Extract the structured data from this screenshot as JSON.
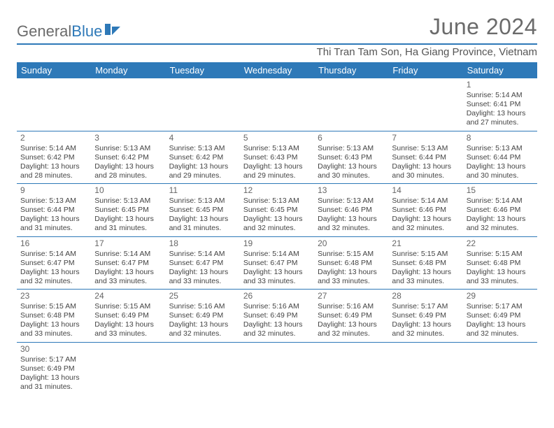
{
  "brand": {
    "part1": "General",
    "part2": "Blue"
  },
  "title": "June 2024",
  "location": "Thi Tran Tam Son, Ha Giang Province, Vietnam",
  "colors": {
    "accent": "#2e79b8",
    "text_muted": "#6b6b6b",
    "body": "#444"
  },
  "day_headers": [
    "Sunday",
    "Monday",
    "Tuesday",
    "Wednesday",
    "Thursday",
    "Friday",
    "Saturday"
  ],
  "weeks": [
    [
      null,
      null,
      null,
      null,
      null,
      null,
      {
        "n": "1",
        "sr": "Sunrise: 5:14 AM",
        "ss": "Sunset: 6:41 PM",
        "d1": "Daylight: 13 hours",
        "d2": "and 27 minutes."
      }
    ],
    [
      {
        "n": "2",
        "sr": "Sunrise: 5:14 AM",
        "ss": "Sunset: 6:42 PM",
        "d1": "Daylight: 13 hours",
        "d2": "and 28 minutes."
      },
      {
        "n": "3",
        "sr": "Sunrise: 5:13 AM",
        "ss": "Sunset: 6:42 PM",
        "d1": "Daylight: 13 hours",
        "d2": "and 28 minutes."
      },
      {
        "n": "4",
        "sr": "Sunrise: 5:13 AM",
        "ss": "Sunset: 6:42 PM",
        "d1": "Daylight: 13 hours",
        "d2": "and 29 minutes."
      },
      {
        "n": "5",
        "sr": "Sunrise: 5:13 AM",
        "ss": "Sunset: 6:43 PM",
        "d1": "Daylight: 13 hours",
        "d2": "and 29 minutes."
      },
      {
        "n": "6",
        "sr": "Sunrise: 5:13 AM",
        "ss": "Sunset: 6:43 PM",
        "d1": "Daylight: 13 hours",
        "d2": "and 30 minutes."
      },
      {
        "n": "7",
        "sr": "Sunrise: 5:13 AM",
        "ss": "Sunset: 6:44 PM",
        "d1": "Daylight: 13 hours",
        "d2": "and 30 minutes."
      },
      {
        "n": "8",
        "sr": "Sunrise: 5:13 AM",
        "ss": "Sunset: 6:44 PM",
        "d1": "Daylight: 13 hours",
        "d2": "and 30 minutes."
      }
    ],
    [
      {
        "n": "9",
        "sr": "Sunrise: 5:13 AM",
        "ss": "Sunset: 6:44 PM",
        "d1": "Daylight: 13 hours",
        "d2": "and 31 minutes."
      },
      {
        "n": "10",
        "sr": "Sunrise: 5:13 AM",
        "ss": "Sunset: 6:45 PM",
        "d1": "Daylight: 13 hours",
        "d2": "and 31 minutes."
      },
      {
        "n": "11",
        "sr": "Sunrise: 5:13 AM",
        "ss": "Sunset: 6:45 PM",
        "d1": "Daylight: 13 hours",
        "d2": "and 31 minutes."
      },
      {
        "n": "12",
        "sr": "Sunrise: 5:13 AM",
        "ss": "Sunset: 6:45 PM",
        "d1": "Daylight: 13 hours",
        "d2": "and 32 minutes."
      },
      {
        "n": "13",
        "sr": "Sunrise: 5:13 AM",
        "ss": "Sunset: 6:46 PM",
        "d1": "Daylight: 13 hours",
        "d2": "and 32 minutes."
      },
      {
        "n": "14",
        "sr": "Sunrise: 5:14 AM",
        "ss": "Sunset: 6:46 PM",
        "d1": "Daylight: 13 hours",
        "d2": "and 32 minutes."
      },
      {
        "n": "15",
        "sr": "Sunrise: 5:14 AM",
        "ss": "Sunset: 6:46 PM",
        "d1": "Daylight: 13 hours",
        "d2": "and 32 minutes."
      }
    ],
    [
      {
        "n": "16",
        "sr": "Sunrise: 5:14 AM",
        "ss": "Sunset: 6:47 PM",
        "d1": "Daylight: 13 hours",
        "d2": "and 32 minutes."
      },
      {
        "n": "17",
        "sr": "Sunrise: 5:14 AM",
        "ss": "Sunset: 6:47 PM",
        "d1": "Daylight: 13 hours",
        "d2": "and 33 minutes."
      },
      {
        "n": "18",
        "sr": "Sunrise: 5:14 AM",
        "ss": "Sunset: 6:47 PM",
        "d1": "Daylight: 13 hours",
        "d2": "and 33 minutes."
      },
      {
        "n": "19",
        "sr": "Sunrise: 5:14 AM",
        "ss": "Sunset: 6:47 PM",
        "d1": "Daylight: 13 hours",
        "d2": "and 33 minutes."
      },
      {
        "n": "20",
        "sr": "Sunrise: 5:15 AM",
        "ss": "Sunset: 6:48 PM",
        "d1": "Daylight: 13 hours",
        "d2": "and 33 minutes."
      },
      {
        "n": "21",
        "sr": "Sunrise: 5:15 AM",
        "ss": "Sunset: 6:48 PM",
        "d1": "Daylight: 13 hours",
        "d2": "and 33 minutes."
      },
      {
        "n": "22",
        "sr": "Sunrise: 5:15 AM",
        "ss": "Sunset: 6:48 PM",
        "d1": "Daylight: 13 hours",
        "d2": "and 33 minutes."
      }
    ],
    [
      {
        "n": "23",
        "sr": "Sunrise: 5:15 AM",
        "ss": "Sunset: 6:48 PM",
        "d1": "Daylight: 13 hours",
        "d2": "and 33 minutes."
      },
      {
        "n": "24",
        "sr": "Sunrise: 5:15 AM",
        "ss": "Sunset: 6:49 PM",
        "d1": "Daylight: 13 hours",
        "d2": "and 33 minutes."
      },
      {
        "n": "25",
        "sr": "Sunrise: 5:16 AM",
        "ss": "Sunset: 6:49 PM",
        "d1": "Daylight: 13 hours",
        "d2": "and 32 minutes."
      },
      {
        "n": "26",
        "sr": "Sunrise: 5:16 AM",
        "ss": "Sunset: 6:49 PM",
        "d1": "Daylight: 13 hours",
        "d2": "and 32 minutes."
      },
      {
        "n": "27",
        "sr": "Sunrise: 5:16 AM",
        "ss": "Sunset: 6:49 PM",
        "d1": "Daylight: 13 hours",
        "d2": "and 32 minutes."
      },
      {
        "n": "28",
        "sr": "Sunrise: 5:17 AM",
        "ss": "Sunset: 6:49 PM",
        "d1": "Daylight: 13 hours",
        "d2": "and 32 minutes."
      },
      {
        "n": "29",
        "sr": "Sunrise: 5:17 AM",
        "ss": "Sunset: 6:49 PM",
        "d1": "Daylight: 13 hours",
        "d2": "and 32 minutes."
      }
    ],
    [
      {
        "n": "30",
        "sr": "Sunrise: 5:17 AM",
        "ss": "Sunset: 6:49 PM",
        "d1": "Daylight: 13 hours",
        "d2": "and 31 minutes."
      },
      null,
      null,
      null,
      null,
      null,
      null
    ]
  ]
}
